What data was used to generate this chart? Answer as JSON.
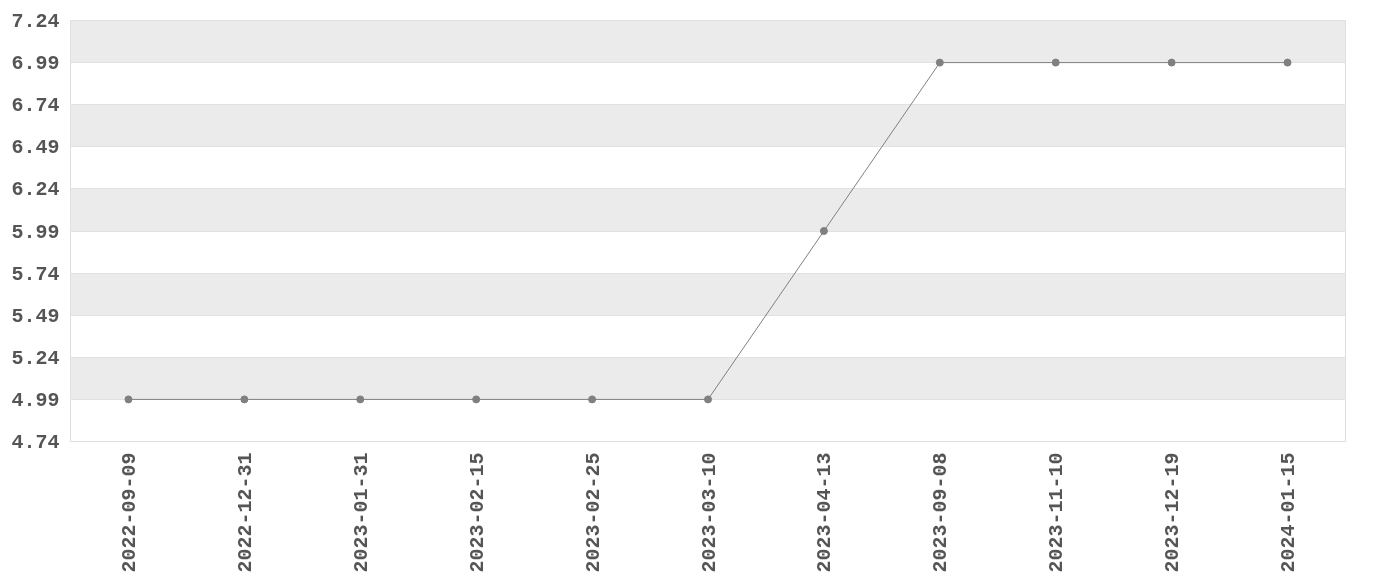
{
  "chart_data": {
    "type": "line",
    "categories": [
      "2022-09-09",
      "2022-12-31",
      "2023-01-31",
      "2023-02-15",
      "2023-02-25",
      "2023-03-10",
      "2023-04-13",
      "2023-09-08",
      "2023-11-10",
      "2023-12-19",
      "2024-01-15"
    ],
    "series": [
      {
        "color": "#808080",
        "values": [
          4.99,
          4.99,
          4.99,
          4.99,
          4.99,
          4.99,
          5.99,
          6.99,
          6.99,
          6.99,
          6.99
        ]
      }
    ],
    "ylim": [
      4.74,
      7.24
    ],
    "yticks": [
      4.74,
      4.99,
      5.24,
      5.49,
      5.74,
      5.99,
      6.24,
      6.49,
      6.74,
      6.99,
      7.24
    ],
    "grid": "y",
    "marker": "circle",
    "line_style": "solid"
  }
}
